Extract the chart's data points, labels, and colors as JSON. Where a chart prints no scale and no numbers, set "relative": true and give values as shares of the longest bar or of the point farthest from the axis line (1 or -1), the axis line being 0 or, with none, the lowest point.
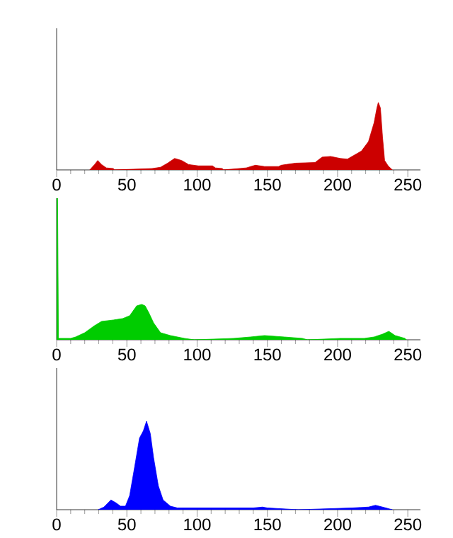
{
  "chart_data": [
    {
      "type": "area",
      "relative": true,
      "xlim": [
        0,
        259
      ],
      "xticks": [
        0,
        {
          "value": 10,
          "label": null
        },
        {
          "value": 20,
          "label": null
        },
        {
          "value": 30,
          "label": null
        },
        {
          "value": 40,
          "label": null
        },
        50,
        {
          "value": 60,
          "label": null
        },
        {
          "value": 70,
          "label": null
        },
        {
          "value": 80,
          "label": null
        },
        {
          "value": 90,
          "label": null
        },
        100,
        {
          "value": 110,
          "label": null
        },
        {
          "value": 120,
          "label": null
        },
        {
          "value": 130,
          "label": null
        },
        {
          "value": 140,
          "label": null
        },
        150,
        {
          "value": 160,
          "label": null
        },
        {
          "value": 170,
          "label": null
        },
        {
          "value": 180,
          "label": null
        },
        {
          "value": 190,
          "label": null
        },
        200,
        {
          "value": 210,
          "label": null
        },
        {
          "value": 220,
          "label": null
        },
        {
          "value": 230,
          "label": null
        },
        {
          "value": 240,
          "label": null
        },
        250
      ],
      "series": [
        {
          "color": "#cc0000",
          "x": [
            23.6,
            27,
            29.3,
            32,
            35.4,
            40.4,
            41,
            68,
            74,
            79,
            84,
            89,
            94,
            101,
            111,
            113,
            118,
            118.6,
            135,
            141.5,
            148,
            158,
            160,
            170,
            184,
            189,
            195,
            202,
            207,
            212,
            217,
            222,
            226,
            228,
            229,
            230.5,
            232,
            233.5,
            236,
            239
          ],
          "values": [
            0,
            0.08,
            0.14,
            0.08,
            0.03,
            0.02,
            0,
            0.02,
            0.04,
            0.1,
            0.17,
            0.14,
            0.08,
            0.06,
            0.06,
            0.03,
            0.02,
            0,
            0.03,
            0.07,
            0.05,
            0.05,
            0.07,
            0.1,
            0.11,
            0.19,
            0.2,
            0.17,
            0.16,
            0.22,
            0.28,
            0.42,
            0.7,
            0.92,
            1.0,
            0.92,
            0.49,
            0.14,
            0.06,
            0
          ]
        }
      ]
    },
    {
      "type": "area",
      "relative": true,
      "xlim": [
        0,
        259
      ],
      "xticks": [
        0,
        {
          "value": 10,
          "label": null
        },
        {
          "value": 20,
          "label": null
        },
        {
          "value": 30,
          "label": null
        },
        {
          "value": 40,
          "label": null
        },
        50,
        {
          "value": 60,
          "label": null
        },
        {
          "value": 70,
          "label": null
        },
        {
          "value": 80,
          "label": null
        },
        {
          "value": 90,
          "label": null
        },
        100,
        {
          "value": 110,
          "label": null
        },
        {
          "value": 120,
          "label": null
        },
        {
          "value": 130,
          "label": null
        },
        {
          "value": 140,
          "label": null
        },
        150,
        {
          "value": 160,
          "label": null
        },
        {
          "value": 170,
          "label": null
        },
        {
          "value": 180,
          "label": null
        },
        {
          "value": 190,
          "label": null
        },
        200,
        {
          "value": 210,
          "label": null
        },
        {
          "value": 220,
          "label": null
        },
        {
          "value": 230,
          "label": null
        },
        {
          "value": 240,
          "label": null
        },
        250
      ],
      "series": [
        {
          "color": "#00cc00",
          "x": [
            0,
            0.7,
            1.3,
            10,
            13.5,
            20,
            27,
            32,
            40.4,
            47,
            52,
            57,
            60.6,
            63,
            65.7,
            69,
            74,
            81,
            91,
            98,
            126,
            138,
            148,
            162,
            175,
            178.6,
            202,
            219,
            226,
            232,
            236.5,
            241,
            248,
            249
          ],
          "values": [
            1.0,
            1.0,
            0.01,
            0.01,
            0.02,
            0.05,
            0.1,
            0.13,
            0.14,
            0.15,
            0.17,
            0.24,
            0.25,
            0.24,
            0.19,
            0.12,
            0.05,
            0.03,
            0.01,
            0,
            0.01,
            0.02,
            0.03,
            0.02,
            0.01,
            0,
            0.01,
            0.01,
            0.02,
            0.04,
            0.06,
            0.03,
            0.01,
            0
          ]
        }
      ]
    },
    {
      "type": "area",
      "relative": true,
      "xlim": [
        0,
        259
      ],
      "xticks": [
        0,
        {
          "value": 10,
          "label": null
        },
        {
          "value": 20,
          "label": null
        },
        {
          "value": 30,
          "label": null
        },
        {
          "value": 40,
          "label": null
        },
        50,
        {
          "value": 60,
          "label": null
        },
        {
          "value": 70,
          "label": null
        },
        {
          "value": 80,
          "label": null
        },
        {
          "value": 90,
          "label": null
        },
        100,
        {
          "value": 110,
          "label": null
        },
        {
          "value": 120,
          "label": null
        },
        {
          "value": 130,
          "label": null
        },
        {
          "value": 140,
          "label": null
        },
        150,
        {
          "value": 160,
          "label": null
        },
        {
          "value": 170,
          "label": null
        },
        {
          "value": 180,
          "label": null
        },
        {
          "value": 190,
          "label": null
        },
        200,
        {
          "value": 210,
          "label": null
        },
        {
          "value": 220,
          "label": null
        },
        {
          "value": 230,
          "label": null
        },
        {
          "value": 240,
          "label": null
        },
        250
      ],
      "series": [
        {
          "color": "#0000ff",
          "x": [
            29.6,
            33.7,
            38.7,
            42,
            45.5,
            49,
            52,
            55.6,
            59,
            61.7,
            64,
            66.7,
            69,
            72.4,
            75.8,
            81,
            86,
            140,
            146.6,
            150,
            172,
            210.6,
            222,
            227,
            232,
            239
          ],
          "values": [
            0,
            0.03,
            0.11,
            0.08,
            0.04,
            0.04,
            0.16,
            0.49,
            0.81,
            0.89,
            1.0,
            0.86,
            0.59,
            0.27,
            0.11,
            0.04,
            0.02,
            0.02,
            0.03,
            0.02,
            0,
            0.02,
            0.03,
            0.05,
            0.03,
            0
          ]
        }
      ]
    }
  ]
}
